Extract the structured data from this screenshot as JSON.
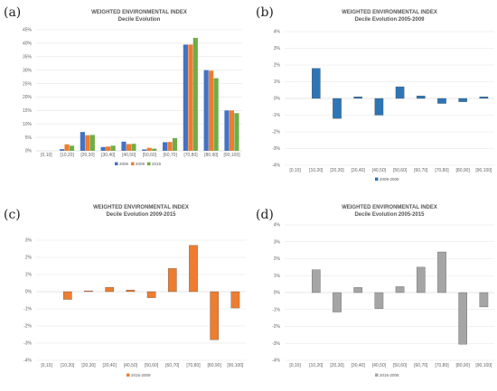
{
  "panels": [
    {
      "label": "(a)"
    },
    {
      "label": "(b)"
    },
    {
      "label": "(c)"
    },
    {
      "label": "(d)"
    }
  ],
  "colors": {
    "series_2005": "#4472c4",
    "series_2009": "#ed7d31",
    "series_2015": "#70ad47",
    "evo_2005_2009": "#2e75b6",
    "evo_2009_2015": "#ed7d31",
    "evo_2005_2015": "#a5a5a5",
    "grid": "#e3e3e3"
  },
  "chart_data": [
    {
      "type": "bar",
      "title": "WEIGHTED ENVIRONMENTAL INDEX",
      "subtitle": "Decile Evolution",
      "categories": [
        "[0,10]",
        "[10,20]",
        "[20,30]",
        "[30,40]",
        "[40,50]",
        "[50,60]",
        "[60,70]",
        "[70,80]",
        "[80,90]",
        "[90,100]"
      ],
      "series": [
        {
          "name": "2005",
          "values": [
            0,
            0.6,
            7.0,
            1.4,
            3.4,
            0.5,
            3.2,
            39.5,
            30.0,
            15.0
          ]
        },
        {
          "name": "2009",
          "values": [
            0,
            2.4,
            5.8,
            1.6,
            2.5,
            1.1,
            3.3,
            39.5,
            29.8,
            15.0
          ]
        },
        {
          "name": "2015",
          "values": [
            0,
            1.9,
            5.9,
            1.9,
            2.6,
            0.8,
            4.7,
            42.0,
            27.0,
            14.0
          ]
        }
      ],
      "ylim": [
        0,
        45
      ],
      "yticks": [
        "0%",
        "5%",
        "10%",
        "15%",
        "20%",
        "25%",
        "30%",
        "35%",
        "40%",
        "45%"
      ],
      "legend_position": "bottom",
      "grid": true
    },
    {
      "type": "bar",
      "title": "WEIGHTED ENVIRONMENTAL INDEX",
      "subtitle": "Decile Evolution 2005-2009",
      "categories": [
        "[0,10]",
        "[10,20]",
        "[20,30]",
        "[30,40]",
        "[40,50]",
        "[50,60]",
        "[60,70]",
        "[70,80]",
        "[80,90]",
        "[90,100]"
      ],
      "series": [
        {
          "name": "2009-2005",
          "values": [
            0,
            1.8,
            -1.2,
            0.1,
            -1.0,
            0.7,
            0.15,
            -0.3,
            -0.2,
            0.1
          ]
        }
      ],
      "ylim": [
        -4,
        4
      ],
      "yticks": [
        "-4%",
        "-3%",
        "-2%",
        "-1%",
        "0%",
        "1%",
        "2%",
        "3%",
        "4%"
      ],
      "legend_position": "bottom",
      "grid": true
    },
    {
      "type": "bar",
      "title": "WEIGHTED ENVIRONMENTAL INDEX",
      "subtitle": "Decile Evolution 2009-2015",
      "categories": [
        "[0,10]",
        "[10,20]",
        "[20,30]",
        "[30,40]",
        "[40,50]",
        "[50,60]",
        "[60,70]",
        "[70,80]",
        "[80,90]",
        "[90,100]"
      ],
      "series": [
        {
          "name": "2015-2009",
          "values": [
            0,
            -0.45,
            0.05,
            0.25,
            0.1,
            -0.35,
            1.35,
            2.7,
            -2.8,
            -0.95
          ]
        }
      ],
      "ylim": [
        -4,
        3
      ],
      "yticks": [
        "-4%",
        "-3%",
        "-2%",
        "-1%",
        "0%",
        "1%",
        "2%",
        "3%"
      ],
      "legend_position": "bottom",
      "grid": true
    },
    {
      "type": "bar",
      "title": "WEIGHTED ENVIRONMENTAL INDEX",
      "subtitle": "Decile Evolution 2005-2015",
      "categories": [
        "[0,10]",
        "[10,20]",
        "[20,30]",
        "[30,40]",
        "[40,50]",
        "[50,60]",
        "[60,70]",
        "[70,80]",
        "[80,90]",
        "[90,100]"
      ],
      "series": [
        {
          "name": "2015-2005",
          "values": [
            0,
            1.35,
            -1.15,
            0.3,
            -0.95,
            0.35,
            1.5,
            2.4,
            -3.05,
            -0.85
          ]
        }
      ],
      "ylim": [
        -4,
        4
      ],
      "yticks": [
        "-4%",
        "-3%",
        "-2%",
        "-1%",
        "0%",
        "1%",
        "2%",
        "3%",
        "4%"
      ],
      "legend_position": "bottom",
      "grid": true
    }
  ]
}
